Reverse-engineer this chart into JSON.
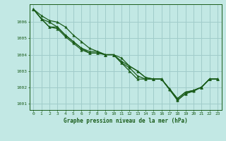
{
  "title": "Graphe pression niveau de la mer (hPa)",
  "background_color": "#c2e8e4",
  "grid_color": "#a0ccca",
  "line_color": "#1a5c1a",
  "marker_color": "#1a5c1a",
  "xlim": [
    -0.5,
    23.5
  ],
  "ylim": [
    1000.6,
    1007.1
  ],
  "yticks": [
    1001,
    1002,
    1003,
    1004,
    1005,
    1006
  ],
  "xticks": [
    0,
    1,
    2,
    3,
    4,
    5,
    6,
    7,
    8,
    9,
    10,
    11,
    12,
    13,
    14,
    15,
    16,
    17,
    18,
    19,
    20,
    21,
    22,
    23
  ],
  "series": [
    [
      1006.8,
      1006.4,
      1006.1,
      1006.0,
      1005.7,
      1005.2,
      1004.8,
      1004.4,
      1004.2,
      1004.0,
      1004.0,
      1003.8,
      1003.3,
      1003.0,
      1002.6,
      1002.5,
      1002.5,
      1001.9,
      1001.3,
      1001.7,
      1001.8,
      1002.0,
      1002.5,
      1002.5
    ],
    [
      1006.8,
      1006.2,
      1006.0,
      1005.7,
      1005.2,
      1004.8,
      1004.4,
      1004.2,
      1004.2,
      1004.0,
      1004.0,
      1003.6,
      1003.3,
      1003.0,
      1002.6,
      1002.5,
      1002.5,
      1001.9,
      1001.3,
      1001.7,
      1001.8,
      1002.0,
      1002.5,
      1002.5
    ],
    [
      1006.8,
      1006.2,
      1005.7,
      1005.7,
      1005.2,
      1004.8,
      1004.4,
      1004.1,
      1004.1,
      1004.0,
      1004.0,
      1003.5,
      1003.2,
      1002.7,
      1002.5,
      1002.5,
      1002.5,
      1001.9,
      1001.2,
      1001.6,
      1001.8,
      1002.0,
      1002.5,
      1002.5
    ],
    [
      1006.8,
      1006.2,
      1005.7,
      1005.6,
      1005.1,
      1004.7,
      1004.3,
      1004.1,
      1004.1,
      1004.0,
      1004.0,
      1003.5,
      1003.0,
      1002.5,
      1002.5,
      1002.5,
      1002.5,
      1001.85,
      1001.2,
      1001.6,
      1001.75,
      1002.0,
      1002.5,
      1002.5
    ]
  ]
}
